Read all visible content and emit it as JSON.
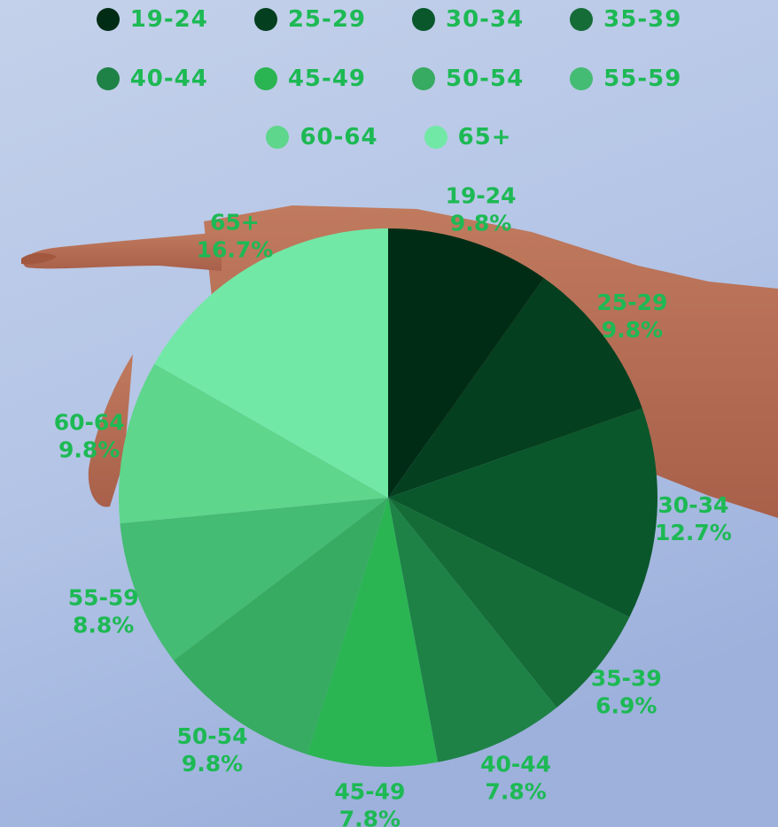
{
  "background": {
    "sky_top": "#c3d0ea",
    "sky_bottom": "#9fb4de",
    "skin": "#b86e52"
  },
  "label_color": "#1db954",
  "chart_data": {
    "type": "pie",
    "title": "",
    "legend_placement": "top",
    "categories": [
      "19-24",
      "25-29",
      "30-34",
      "35-39",
      "40-44",
      "45-49",
      "50-54",
      "55-59",
      "60-64",
      "65+"
    ],
    "values": [
      9.8,
      9.8,
      12.7,
      6.9,
      7.8,
      7.8,
      9.8,
      8.8,
      9.8,
      16.7
    ],
    "value_labels": [
      "9.8%",
      "9.8%",
      "12.7%",
      "6.9%",
      "7.8%",
      "7.8%",
      "9.8%",
      "8.8%",
      "9.8%",
      "16.7%"
    ],
    "colors": [
      "#002c16",
      "#043f1f",
      "#0a572c",
      "#156c37",
      "#1e8246",
      "#2ab552",
      "#37ab61",
      "#44bc73",
      "#5ed68c",
      "#72e8a6"
    ]
  }
}
